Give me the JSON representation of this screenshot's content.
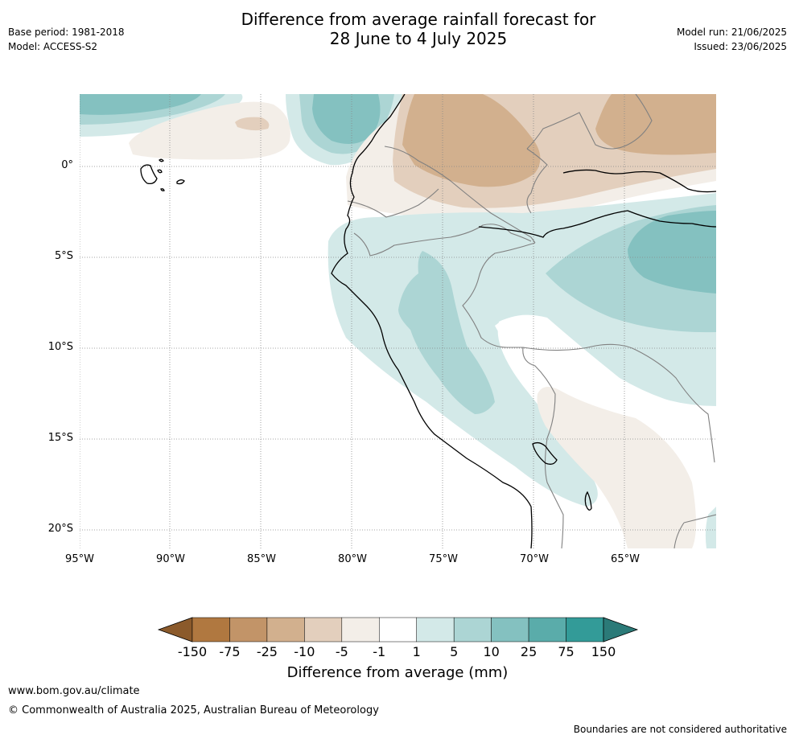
{
  "header": {
    "title_line1": "Difference from average rainfall forecast for",
    "title_line2": "28 June to 4 July 2025",
    "base_period": "Base period: 1981-2018",
    "model": "Model: ACCESS-S2",
    "model_run": "Model run: 21/06/2025",
    "issued": "Issued: 23/06/2025"
  },
  "map": {
    "region": "Western South America",
    "lat_labels": [
      "0°",
      "5°S",
      "10°S",
      "15°S",
      "20°S"
    ],
    "lon_labels": [
      "95°W",
      "90°W",
      "85°W",
      "80°W",
      "75°W",
      "70°W",
      "65°W"
    ],
    "lat_values": [
      0,
      -5,
      -10,
      -15,
      -20
    ],
    "lon_values": [
      -95,
      -90,
      -85,
      -80,
      -75,
      -70,
      -65
    ],
    "extent": {
      "lon_min": -95,
      "lon_max": -60,
      "lat_min": -21,
      "lat_max": 4
    },
    "colors": {
      "coast": "#000000",
      "borders": "#808080",
      "grid": "#888888"
    }
  },
  "colorbar": {
    "title": "Difference from average (mm)",
    "tick_labels": [
      "-150",
      "-75",
      "-25",
      "-10",
      "-5",
      "-1",
      "1",
      "5",
      "10",
      "25",
      "75",
      "150"
    ],
    "colors": [
      "#8b5a2b",
      "#b07840",
      "#c29468",
      "#d2b08e",
      "#e3cfbd",
      "#f3eee8",
      "#ffffff",
      "#d3e9e8",
      "#acd5d4",
      "#84c1c0",
      "#5aacaa",
      "#339b98",
      "#2b7a78"
    ]
  },
  "footer": {
    "website": "www.bom.gov.au/climate",
    "copyright": "© Commonwealth of Australia 2025, Australian Bureau of Meteorology",
    "disclaimer": "Boundaries are not considered authoritative"
  }
}
